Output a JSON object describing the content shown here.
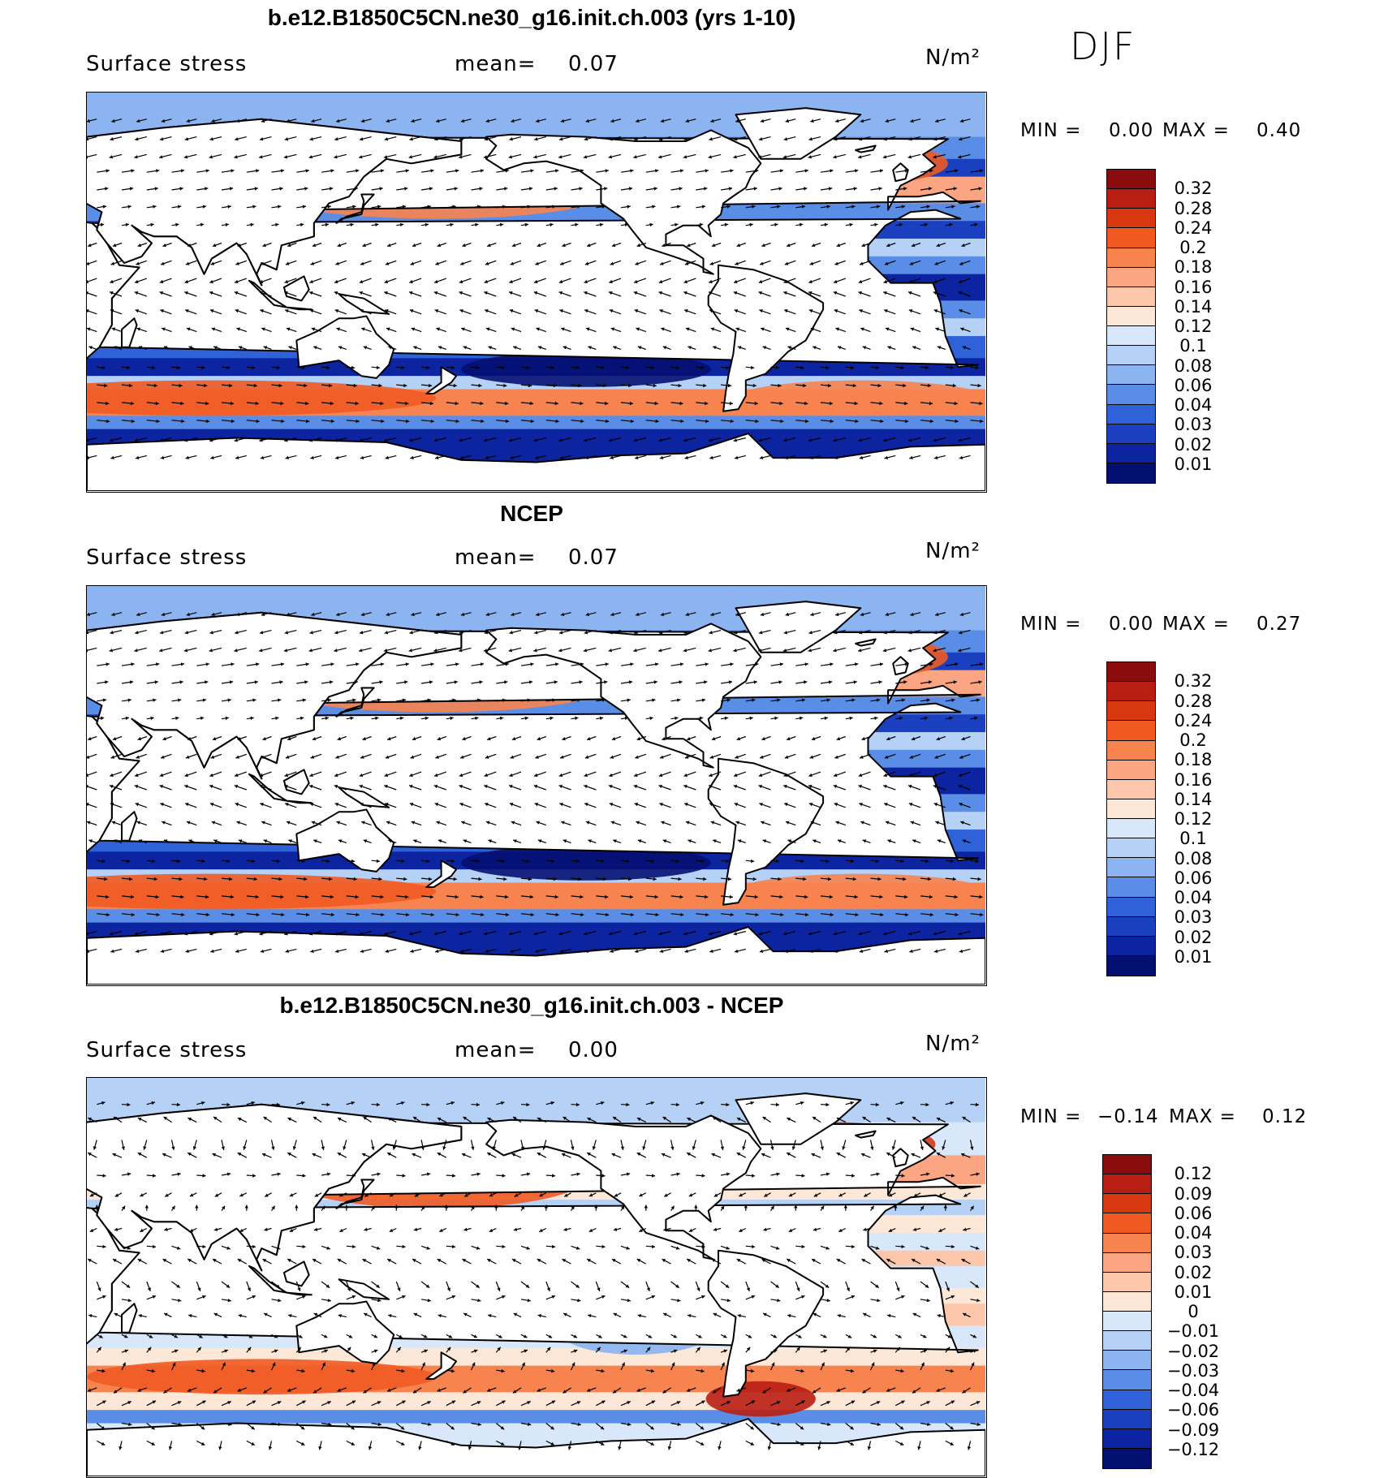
{
  "season": "DJF",
  "chart_data": [
    {
      "type": "heatmap",
      "title": "b.e12.B1850C5CN.ne30_g16.init.ch.003 (yrs 1-10)",
      "variable": "Surface stress",
      "mean_label": "mean=",
      "mean_value": "0.07",
      "units": "N/m²",
      "min_label": "MIN =",
      "min_value": "0.00",
      "max_label": "MAX =",
      "max_value": "0.40",
      "colorbar_levels": [
        "0.32",
        "0.28",
        "0.24",
        "0.2",
        "0.18",
        "0.16",
        "0.14",
        "0.12",
        "0.1",
        "0.08",
        "0.06",
        "0.04",
        "0.03",
        "0.02",
        "0.01"
      ],
      "colorbar_colors": [
        "#8b0c0c",
        "#b81e12",
        "#d8380f",
        "#f05a22",
        "#f7834f",
        "#fba582",
        "#fcc7ab",
        "#fde7d7",
        "#d8e8fa",
        "#b5d1f6",
        "#8bb4f0",
        "#5a8ee6",
        "#2f62d8",
        "#1a3fbf",
        "#0c249f",
        "#040f72"
      ],
      "wind_pattern": "positive"
    },
    {
      "type": "heatmap",
      "title": "NCEP",
      "variable": "Surface stress",
      "mean_label": "mean=",
      "mean_value": "0.07",
      "units": "N/m²",
      "min_label": "MIN =",
      "min_value": "0.00",
      "max_label": "MAX =",
      "max_value": "0.27",
      "colorbar_levels": [
        "0.32",
        "0.28",
        "0.24",
        "0.2",
        "0.18",
        "0.16",
        "0.14",
        "0.12",
        "0.1",
        "0.08",
        "0.06",
        "0.04",
        "0.03",
        "0.02",
        "0.01"
      ],
      "colorbar_colors": [
        "#8b0c0c",
        "#b81e12",
        "#d8380f",
        "#f05a22",
        "#f7834f",
        "#fba582",
        "#fcc7ab",
        "#fde7d7",
        "#d8e8fa",
        "#b5d1f6",
        "#8bb4f0",
        "#5a8ee6",
        "#2f62d8",
        "#1a3fbf",
        "#0c249f",
        "#040f72"
      ],
      "wind_pattern": "positive"
    },
    {
      "type": "heatmap",
      "title": "b.e12.B1850C5CN.ne30_g16.init.ch.003 - NCEP",
      "variable": "Surface stress",
      "mean_label": "mean=",
      "mean_value": "0.00",
      "units": "N/m²",
      "min_label": "MIN =",
      "min_value": "−0.14",
      "max_label": "MAX =",
      "max_value": "0.12",
      "colorbar_levels": [
        "0.12",
        "0.09",
        "0.06",
        "0.04",
        "0.03",
        "0.02",
        "0.01",
        "0",
        "−0.01",
        "−0.02",
        "−0.03",
        "−0.04",
        "−0.06",
        "−0.09",
        "−0.12"
      ],
      "colorbar_colors": [
        "#8b0c0c",
        "#b81e12",
        "#d8380f",
        "#f05a22",
        "#f7834f",
        "#fba582",
        "#fcc7ab",
        "#fde7d7",
        "#d8e8fa",
        "#b5d1f6",
        "#8bb4f0",
        "#5a8ee6",
        "#2f62d8",
        "#1a3fbf",
        "#0c249f",
        "#040f72"
      ],
      "wind_pattern": "difference"
    }
  ]
}
